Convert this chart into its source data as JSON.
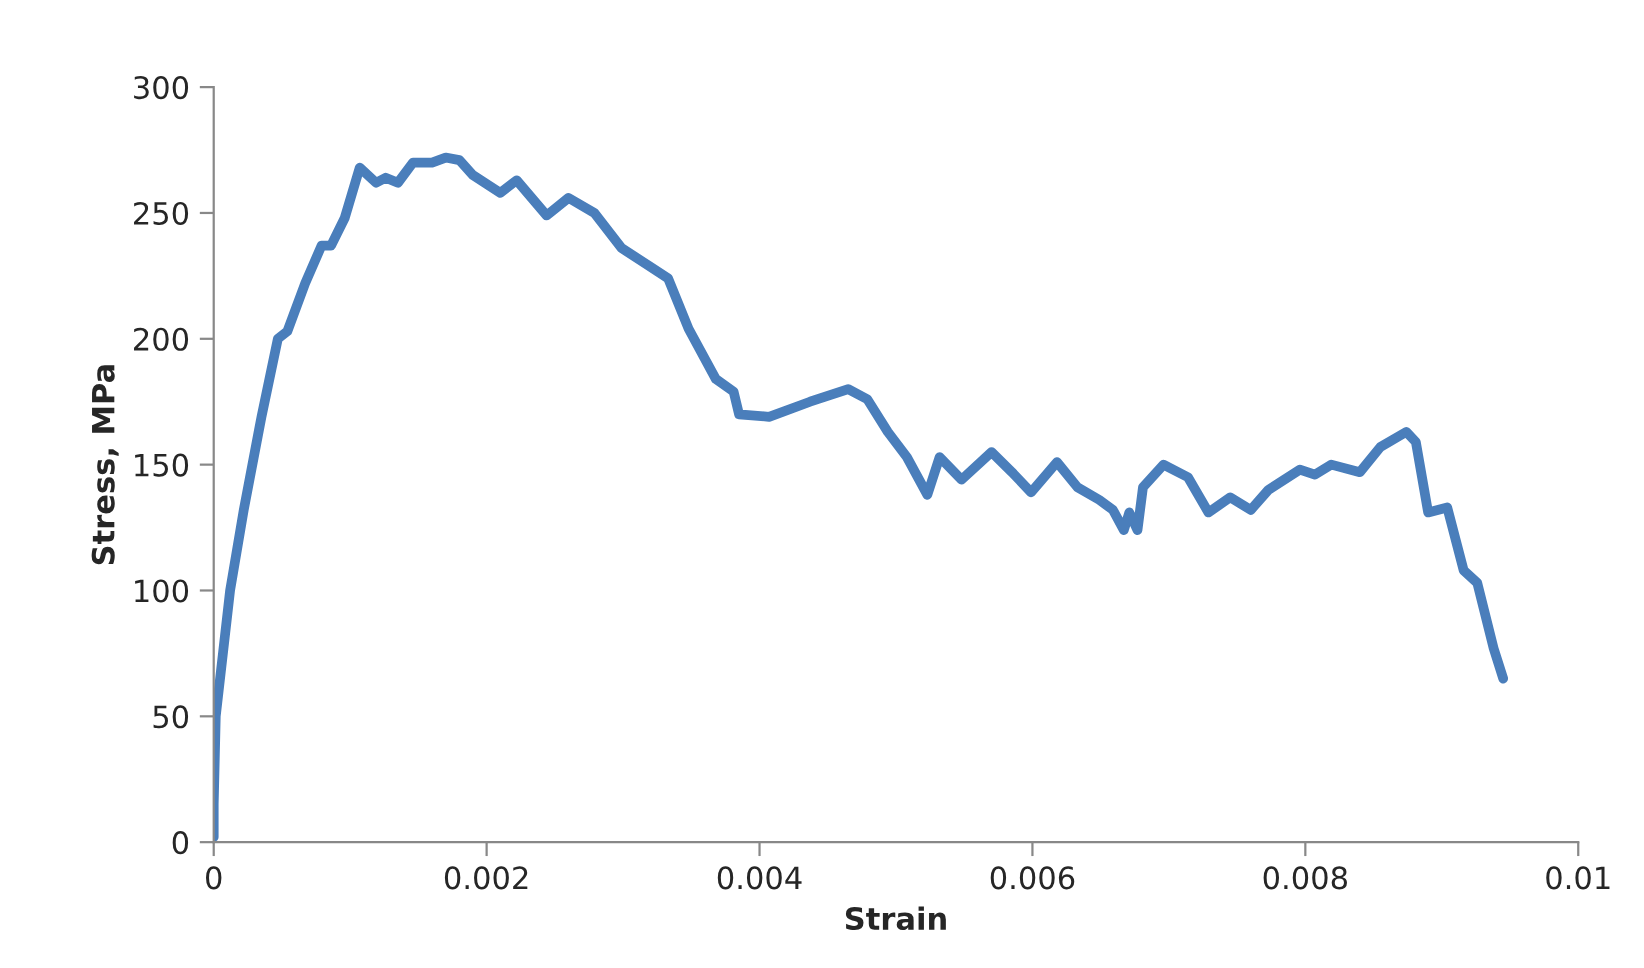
{
  "chart_data": {
    "type": "line",
    "xlabel": "Strain",
    "ylabel": "Stress, MPa",
    "xlim": [
      0,
      0.01
    ],
    "xticks": [
      0,
      0.002,
      0.004,
      0.006,
      0.008,
      0.01
    ],
    "ylim": [
      0,
      300
    ],
    "yticks": [
      0,
      50,
      100,
      150,
      200,
      250,
      300
    ],
    "marker": "none",
    "line_style": "solid",
    "series": [
      {
        "color": "#4a7ebb",
        "x": [
          0,
          0,
          1.5e-05,
          0.00012,
          0.00022,
          0.00035,
          0.00047,
          0.00054,
          0.00067,
          0.00079,
          0.00086,
          0.00096,
          0.00107,
          0.00119,
          0.00126,
          0.00135,
          0.00146,
          0.0016,
          0.0017,
          0.0018,
          0.0019,
          0.0021,
          0.00222,
          0.00244,
          0.0026,
          0.00279,
          0.00299,
          0.00319,
          0.00333,
          0.00348,
          0.00368,
          0.00381,
          0.00385,
          0.00407,
          0.00437,
          0.00465,
          0.00479,
          0.00494,
          0.00508,
          0.00523,
          0.00532,
          0.00548,
          0.0057,
          0.00585,
          0.00599,
          0.00618,
          0.00633,
          0.00649,
          0.00659,
          0.00667,
          0.00671,
          0.00677,
          0.00681,
          0.00696,
          0.00714,
          0.00729,
          0.00745,
          0.0076,
          0.00773,
          0.00796,
          0.00807,
          0.00819,
          0.0084,
          0.00855,
          0.00874,
          0.00881,
          0.0089,
          0.00904,
          0.00916,
          0.00926,
          0.00938,
          0.00945
        ],
        "values": [
          2,
          15,
          50,
          100,
          132,
          169,
          200,
          203,
          222,
          237,
          237,
          248,
          268,
          262,
          264,
          262,
          270,
          270,
          272,
          271,
          265,
          258,
          263,
          249,
          256,
          250,
          236,
          229,
          224,
          204,
          184,
          179,
          170,
          169,
          175,
          180,
          176,
          163,
          153,
          138,
          153,
          144,
          155,
          147,
          139,
          151,
          141,
          136,
          132,
          124,
          131,
          124,
          141,
          150,
          145,
          131,
          137,
          132,
          140,
          148,
          146,
          150,
          147,
          157,
          163,
          159,
          131,
          133,
          108,
          103,
          77,
          65
        ]
      }
    ]
  }
}
